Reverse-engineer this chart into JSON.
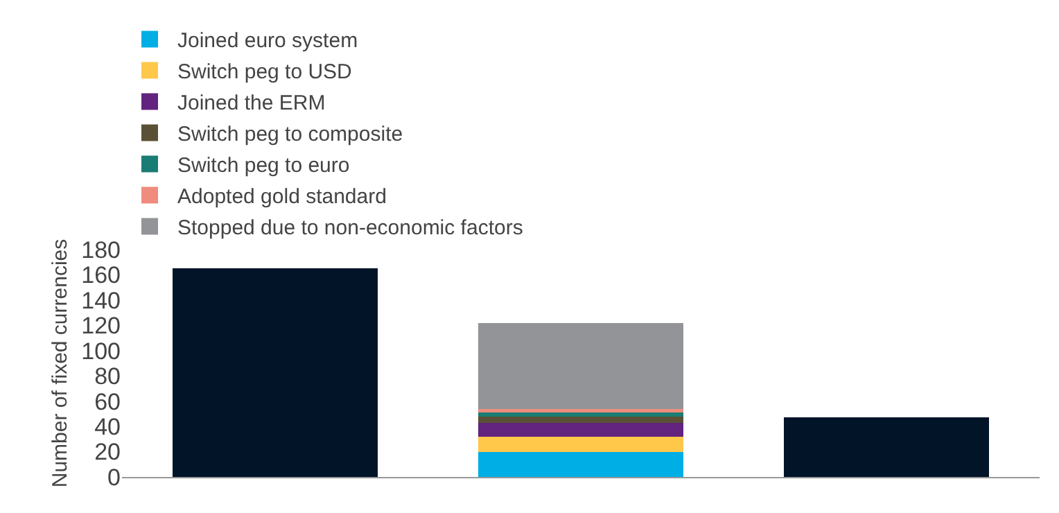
{
  "chart_data": {
    "type": "bar",
    "stacked": true,
    "categories": [
      null,
      null,
      null
    ],
    "ylabel": "Number of fixed currencies",
    "ylim": [
      0,
      180
    ],
    "yticks": [
      0,
      20,
      40,
      60,
      80,
      100,
      120,
      140,
      160,
      180
    ],
    "grid": false,
    "legend": "top left",
    "series": [
      {
        "color": "#021428",
        "values": [
          165,
          null,
          47
        ]
      },
      {
        "name": "Joined euro system",
        "color": "#00aee6",
        "values": [
          null,
          20,
          null
        ]
      },
      {
        "name": "Switch peg to USD",
        "color": "#ffc84a",
        "values": [
          null,
          12,
          null
        ]
      },
      {
        "name": "Joined the ERM",
        "color": "#62247e",
        "values": [
          null,
          11,
          null
        ]
      },
      {
        "name": "Switch peg to composite",
        "color": "#5a5035",
        "values": [
          null,
          5,
          null
        ]
      },
      {
        "name": "Switch peg to euro",
        "color": "#1a7d73",
        "values": [
          null,
          3,
          null
        ]
      },
      {
        "name": "Adopted gold standard",
        "color": "#ef8c7d",
        "values": [
          null,
          3,
          null
        ]
      },
      {
        "name": "Stopped due to non-economic factors",
        "color": "#929497",
        "values": [
          null,
          68,
          null
        ]
      }
    ]
  }
}
